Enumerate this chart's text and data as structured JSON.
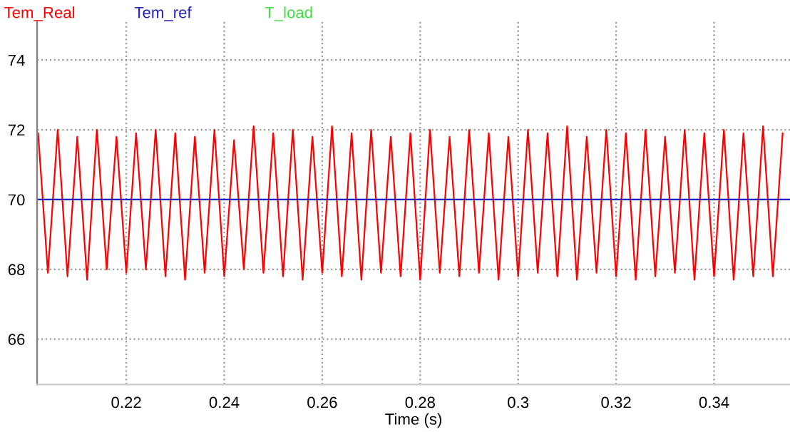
{
  "chart_data": {
    "type": "line",
    "xlabel": "Time (s)",
    "xlim": [
      0.2018,
      0.3555
    ],
    "ylim": [
      64.7,
      75.1
    ],
    "xticks": [
      0.22,
      0.24,
      0.26,
      0.28,
      0.3,
      0.32,
      0.34
    ],
    "yticks": [
      66,
      68,
      70,
      72,
      74
    ],
    "grid": true,
    "legend": "top left",
    "line_style": "solid",
    "marker": "none",
    "series": [
      {
        "name": "Tem_Real",
        "color": "#ff0000",
        "x": [
          0.202,
          0.204,
          0.206,
          0.208,
          0.21,
          0.212,
          0.214,
          0.216,
          0.218,
          0.22,
          0.222,
          0.224,
          0.226,
          0.228,
          0.23,
          0.232,
          0.234,
          0.236,
          0.238,
          0.24,
          0.242,
          0.244,
          0.246,
          0.248,
          0.25,
          0.252,
          0.254,
          0.256,
          0.258,
          0.26,
          0.262,
          0.264,
          0.266,
          0.268,
          0.27,
          0.272,
          0.274,
          0.276,
          0.278,
          0.28,
          0.282,
          0.284,
          0.286,
          0.288,
          0.29,
          0.292,
          0.294,
          0.296,
          0.298,
          0.3,
          0.302,
          0.304,
          0.306,
          0.308,
          0.31,
          0.312,
          0.314,
          0.316,
          0.318,
          0.32,
          0.322,
          0.324,
          0.326,
          0.328,
          0.33,
          0.332,
          0.334,
          0.336,
          0.338,
          0.34,
          0.342,
          0.344,
          0.346,
          0.348,
          0.35,
          0.352,
          0.354
        ],
        "values": [
          71.9,
          67.9,
          72.0,
          67.8,
          71.8,
          67.7,
          72.0,
          68.0,
          71.8,
          67.9,
          71.9,
          68.0,
          72.0,
          67.8,
          71.9,
          67.7,
          71.8,
          67.9,
          72.0,
          67.8,
          71.7,
          68.0,
          72.1,
          67.9,
          71.9,
          67.8,
          72.0,
          67.7,
          71.8,
          67.9,
          72.1,
          67.8,
          71.9,
          67.7,
          72.0,
          67.9,
          71.8,
          67.8,
          71.9,
          67.7,
          72.0,
          67.9,
          71.8,
          67.8,
          72.0,
          67.9,
          71.9,
          67.7,
          71.8,
          67.8,
          72.0,
          67.9,
          71.9,
          67.8,
          72.1,
          67.7,
          71.8,
          67.9,
          72.0,
          67.8,
          71.9,
          67.7,
          72.0,
          67.8,
          71.8,
          67.9,
          72.0,
          67.7,
          71.9,
          67.8,
          72.0,
          67.7,
          71.9,
          67.8,
          72.1,
          67.8,
          71.9
        ]
      },
      {
        "name": "Tem_ref",
        "color": "#2020c0",
        "x": [
          0.2018,
          0.3555
        ],
        "values": [
          70,
          70
        ]
      },
      {
        "name": "T_load",
        "color": "#40e040"
      }
    ]
  }
}
